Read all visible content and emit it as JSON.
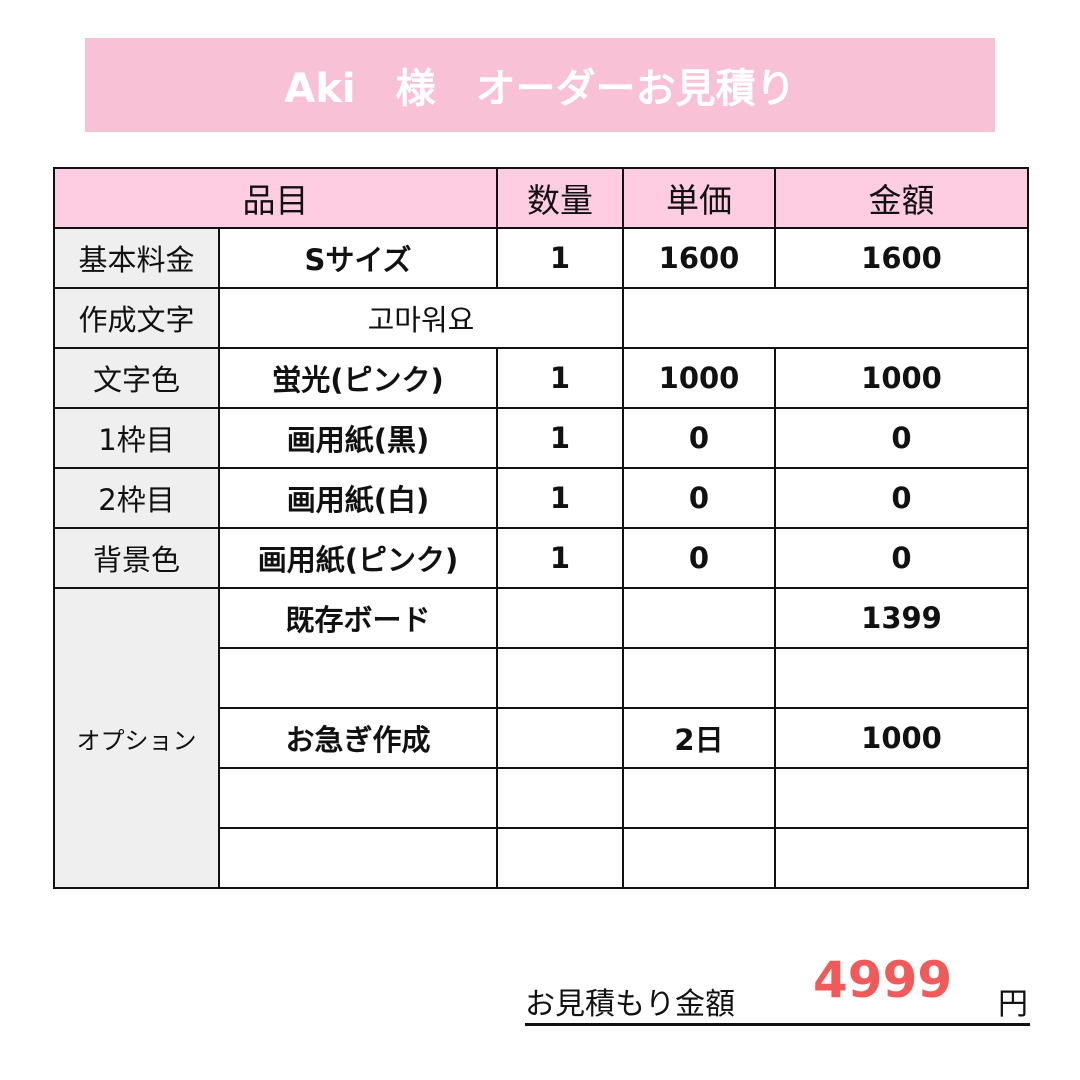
{
  "title": "Aki　様　オーダーお見積り",
  "headers": [
    "品目",
    "数量",
    "単価",
    "金額"
  ],
  "rows": [
    {
      "label": "基本料金",
      "item": "Sサイズ",
      "qty": "1",
      "price": "1600",
      "amount": "1600"
    },
    {
      "label": "作成文字",
      "item": "고마워요"
    },
    {
      "label": "文字色",
      "item": "蛍光(ピンク)",
      "qty": "1",
      "price": "1000",
      "amount": "1000"
    },
    {
      "label": "1枠目",
      "item": "画用紙(黒)",
      "qty": "1",
      "price": "0",
      "amount": "0"
    },
    {
      "label": "2枠目",
      "item": "画用紙(白)",
      "qty": "1",
      "price": "0",
      "amount": "0"
    },
    {
      "label": "背景色",
      "item": "画用紙(ピンク)",
      "qty": "1",
      "price": "0",
      "amount": "0"
    }
  ],
  "options": {
    "label": "オプション",
    "rows": [
      {
        "item": "既存ボード",
        "qty": "",
        "price": "",
        "amount": "1399"
      },
      {
        "item": "",
        "qty": "",
        "price": "",
        "amount": ""
      },
      {
        "item": "お急ぎ作成",
        "qty": "",
        "price": "2日",
        "amount": "1000"
      },
      {
        "item": "",
        "qty": "",
        "price": "",
        "amount": ""
      },
      {
        "item": "",
        "qty": "",
        "price": "",
        "amount": ""
      }
    ]
  },
  "total": {
    "label": "お見積もり金額",
    "value": "4999",
    "unit": "円"
  },
  "colors": {
    "title_bg": "#f8c1d5",
    "header_bg": "#ffcde1",
    "label_bg": "#efefef",
    "total": "#f05a5a"
  }
}
